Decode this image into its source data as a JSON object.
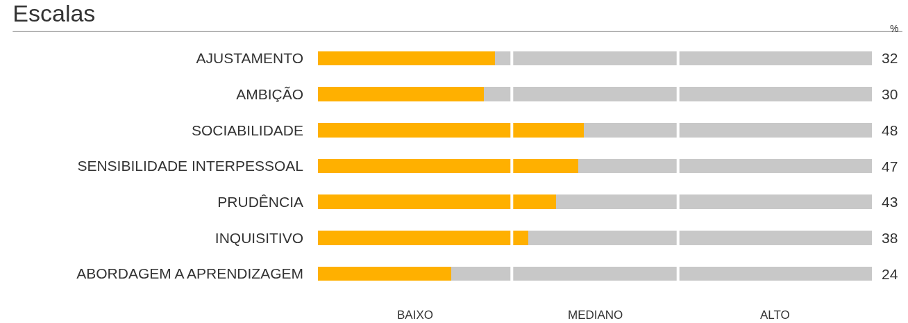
{
  "chart_data": {
    "type": "bar",
    "orientation": "horizontal",
    "stacked": true,
    "title": "Escalas",
    "annotations": [
      "%",
      "BAIXO",
      "MEDIANO",
      "ALTO"
    ],
    "tick_labels": "y",
    "categories": [
      "AJUSTAMENTO",
      "AMBIÇÃO",
      "SOCIABILIDADE",
      "SENSIBILIDADE INTERPESSOAL",
      "PRUDÊNCIA",
      "INQUISITIVO",
      "ABORDAGEM A APRENDIZAGEM"
    ],
    "series": [
      {
        "color": "#ffb000",
        "values": [
          32,
          30,
          48,
          47,
          43,
          38,
          24
        ],
        "value_labels": [
          "32",
          "30",
          "48",
          "47",
          "43",
          "38",
          "24"
        ]
      },
      {
        "color": "#c8c8c8",
        "values": [
          68,
          70,
          52,
          53,
          57,
          62,
          76
        ]
      }
    ],
    "xlim": [
      0,
      100
    ],
    "ref_lines": [
      {
        "axis": "x",
        "value": 35,
        "color": "#ffffff"
      },
      {
        "axis": "x",
        "value": 65,
        "color": "#ffffff"
      }
    ]
  }
}
